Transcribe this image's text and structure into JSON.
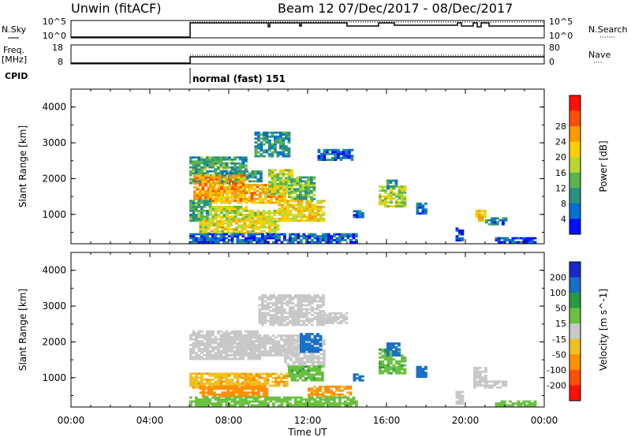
{
  "header": {
    "title_left": "Unwin (fitACF)",
    "title_right": "Beam 12  07/Dec/2017 - 08/Dec/2017"
  },
  "nsky_panel": {
    "label": "N.Sky",
    "tick_top": "10^5",
    "tick_bottom": "10^0",
    "right_tick_top": "10^5",
    "right_tick_bottom": "10^0",
    "right_label": "N.Search",
    "right_legend_line": "·······"
  },
  "freq_panel": {
    "label_line1": "Freq.",
    "label_line2": "[MHz]",
    "tick_top": "18",
    "tick_bottom": "8",
    "right_tick_top": "80",
    "right_tick_bottom": "0",
    "right_label": "Nave",
    "right_legend_line": "····"
  },
  "cpid": {
    "label": "CPID",
    "mode_text": "normal (fast) 151"
  },
  "x_axis": {
    "label": "Time UT",
    "ticks": [
      "00:00",
      "04:00",
      "08:00",
      "12:00",
      "16:00",
      "20:00",
      "00:00"
    ]
  },
  "chart_data": [
    {
      "type": "heatmap",
      "ylabel": "Slant Range [km]",
      "xlabel": "Time UT",
      "ylim": [
        180,
        4500
      ],
      "y_ticks": [
        "1000",
        "2000",
        "3000",
        "4000"
      ],
      "colorbar": {
        "label": "Power [dB]",
        "ticks": [
          "4",
          "8",
          "12",
          "16",
          "20",
          "24",
          "28"
        ],
        "colors": [
          "#0010ff",
          "#0070d0",
          "#2a9080",
          "#58b450",
          "#b8d830",
          "#ffd000",
          "#ff9a00",
          "#ff5000",
          "#ff1000"
        ]
      },
      "patches": [
        {
          "t0": 6.0,
          "t1": 8.8,
          "r0": 1850,
          "r1": 2600,
          "v": 12
        },
        {
          "t0": 7.6,
          "t1": 9.6,
          "r0": 1900,
          "r1": 2200,
          "v": 10
        },
        {
          "t0": 9.3,
          "t1": 11.0,
          "r0": 2600,
          "r1": 3300,
          "v": 10
        },
        {
          "t0": 6.2,
          "t1": 8.8,
          "r0": 1400,
          "r1": 2100,
          "v": 26
        },
        {
          "t0": 7.0,
          "t1": 10.8,
          "r0": 1300,
          "r1": 1850,
          "v": 24
        },
        {
          "t0": 10.0,
          "t1": 11.2,
          "r0": 1550,
          "r1": 2250,
          "v": 18
        },
        {
          "t0": 11.0,
          "t1": 12.3,
          "r0": 1350,
          "r1": 2050,
          "v": 14
        },
        {
          "t0": 6.0,
          "t1": 7.0,
          "r0": 800,
          "r1": 1400,
          "v": 12
        },
        {
          "t0": 7.0,
          "t1": 9.0,
          "r0": 800,
          "r1": 1200,
          "v": 18
        },
        {
          "t0": 10.5,
          "t1": 12.8,
          "r0": 800,
          "r1": 1400,
          "v": 22
        },
        {
          "t0": 9.0,
          "t1": 10.5,
          "r0": 800,
          "r1": 1100,
          "v": 20
        },
        {
          "t0": 6.5,
          "t1": 10.5,
          "r0": 450,
          "r1": 800,
          "v": 20
        },
        {
          "t0": 6.0,
          "t1": 14.5,
          "r0": 200,
          "r1": 450,
          "v": 6
        },
        {
          "t0": 12.5,
          "t1": 14.2,
          "r0": 2500,
          "r1": 2800,
          "v": 6
        },
        {
          "t0": 15.6,
          "t1": 17.0,
          "r0": 1200,
          "r1": 1800,
          "v": 18
        },
        {
          "t0": 16.0,
          "t1": 16.5,
          "r0": 1700,
          "r1": 1950,
          "v": 10
        },
        {
          "t0": 14.3,
          "t1": 14.8,
          "r0": 900,
          "r1": 1100,
          "v": 6
        },
        {
          "t0": 17.5,
          "t1": 18.0,
          "r0": 1000,
          "r1": 1300,
          "v": 6
        },
        {
          "t0": 20.5,
          "t1": 21.0,
          "r0": 800,
          "r1": 1100,
          "v": 22
        },
        {
          "t0": 21.0,
          "t1": 22.0,
          "r0": 700,
          "r1": 900,
          "v": 8
        },
        {
          "t0": 19.5,
          "t1": 19.8,
          "r0": 250,
          "r1": 600,
          "v": 4
        },
        {
          "t0": 21.5,
          "t1": 23.5,
          "r0": 200,
          "r1": 350,
          "v": 4
        }
      ]
    },
    {
      "type": "heatmap",
      "ylabel": "Slant Range [km]",
      "xlabel": "Time UT",
      "ylim": [
        180,
        4500
      ],
      "y_ticks": [
        "1000",
        "2000",
        "3000",
        "4000"
      ],
      "colorbar": {
        "label": "Velocity [m s^-1]",
        "ticks": [
          "200",
          "100",
          "50",
          "15",
          "-15",
          "-50",
          "-100",
          "-200"
        ],
        "colors": [
          "#1828c8",
          "#1870c8",
          "#2a9a40",
          "#6ac040",
          "#c8c8c8",
          "#f0c020",
          "#ff9000",
          "#ff5000",
          "#ff1000"
        ]
      },
      "patches": [
        {
          "t0": 6.0,
          "t1": 9.6,
          "r0": 1500,
          "r1": 2300,
          "v": 0
        },
        {
          "t0": 7.8,
          "t1": 11.5,
          "r0": 1600,
          "r1": 2200,
          "v": 0
        },
        {
          "t0": 9.5,
          "t1": 12.8,
          "r0": 2450,
          "r1": 3300,
          "v": 0
        },
        {
          "t0": 10.8,
          "t1": 12.8,
          "r0": 1300,
          "r1": 2100,
          "v": 0
        },
        {
          "t0": 11.6,
          "t1": 12.6,
          "r0": 1700,
          "r1": 2250,
          "v": 150
        },
        {
          "t0": 11.0,
          "t1": 12.8,
          "r0": 900,
          "r1": 1300,
          "v": 40
        },
        {
          "t0": 6.0,
          "t1": 8.5,
          "r0": 700,
          "r1": 1100,
          "v": -40
        },
        {
          "t0": 8.5,
          "t1": 11.0,
          "r0": 750,
          "r1": 1100,
          "v": -45
        },
        {
          "t0": 6.5,
          "t1": 10.0,
          "r0": 450,
          "r1": 750,
          "v": -70
        },
        {
          "t0": 12.0,
          "t1": 14.2,
          "r0": 450,
          "r1": 750,
          "v": -60
        },
        {
          "t0": 6.0,
          "t1": 14.5,
          "r0": 200,
          "r1": 450,
          "v": 30
        },
        {
          "t0": 12.5,
          "t1": 14.0,
          "r0": 2500,
          "r1": 2800,
          "v": 0
        },
        {
          "t0": 15.6,
          "t1": 17.0,
          "r0": 1100,
          "r1": 1800,
          "v": 40
        },
        {
          "t0": 16.0,
          "t1": 16.6,
          "r0": 1600,
          "r1": 1950,
          "v": 150
        },
        {
          "t0": 17.5,
          "t1": 18.0,
          "r0": 1000,
          "r1": 1300,
          "v": 180
        },
        {
          "t0": 14.3,
          "t1": 14.8,
          "r0": 900,
          "r1": 1100,
          "v": 150
        },
        {
          "t0": 20.4,
          "t1": 21.0,
          "r0": 700,
          "r1": 1300,
          "v": 0
        },
        {
          "t0": 21.0,
          "t1": 22.0,
          "r0": 700,
          "r1": 900,
          "v": 0
        },
        {
          "t0": 19.5,
          "t1": 19.8,
          "r0": 250,
          "r1": 600,
          "v": 0
        },
        {
          "t0": 21.5,
          "t1": 23.5,
          "r0": 200,
          "r1": 350,
          "v": 30
        }
      ]
    }
  ]
}
